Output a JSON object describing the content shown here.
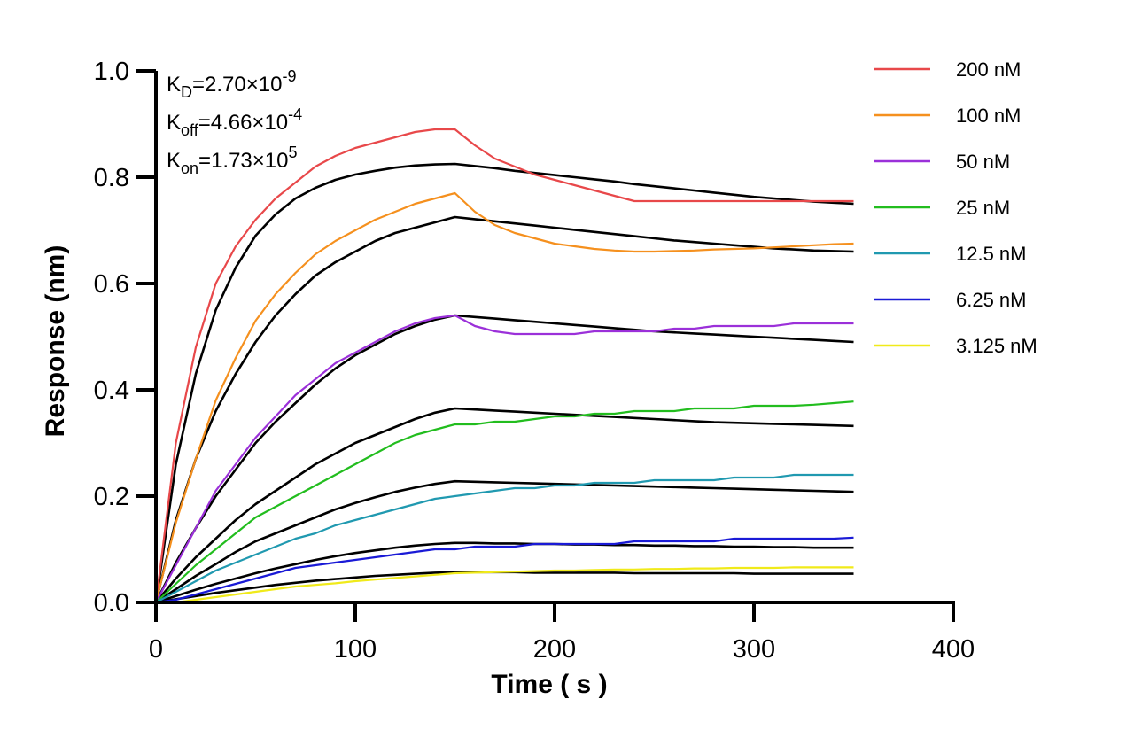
{
  "chart_data": {
    "type": "line",
    "title": "",
    "xlabel": "Time ( s )",
    "ylabel": "Response (nm)",
    "xlim": [
      0,
      400
    ],
    "ylim": [
      0,
      1.0
    ],
    "x_ticks": [
      0,
      100,
      200,
      300,
      400
    ],
    "y_ticks": [
      0.0,
      0.2,
      0.4,
      0.6,
      0.8,
      1.0
    ],
    "x_tick_labels": [
      "0",
      "100",
      "200",
      "300",
      "400"
    ],
    "y_tick_labels": [
      "0.0",
      "0.2",
      "0.4",
      "0.6",
      "0.8",
      "1.0"
    ],
    "grid": false,
    "legend_position": "top-right",
    "annotations": [
      {
        "base": "K",
        "sub": "D",
        "eq": "=2.70×10",
        "sup": "-9"
      },
      {
        "base": "K",
        "sub": "off",
        "eq": "=4.66×10",
        "sup": "-4"
      },
      {
        "base": "K",
        "sub": "on",
        "eq": "=1.73×10",
        "sup": "5"
      }
    ],
    "x": [
      0,
      10,
      20,
      30,
      40,
      50,
      60,
      70,
      80,
      90,
      100,
      110,
      120,
      130,
      140,
      150,
      160,
      170,
      180,
      190,
      200,
      210,
      220,
      230,
      240,
      250,
      260,
      270,
      280,
      290,
      300,
      310,
      320,
      330,
      340,
      350
    ],
    "series": [
      {
        "name": "200 nM",
        "color": "#e8484a",
        "values": [
          0.0,
          0.3,
          0.48,
          0.6,
          0.67,
          0.72,
          0.76,
          0.79,
          0.82,
          0.84,
          0.855,
          0.865,
          0.875,
          0.885,
          0.89,
          0.89,
          0.86,
          0.835,
          0.82,
          0.805,
          0.795,
          0.785,
          0.775,
          0.765,
          0.755,
          0.755,
          0.755,
          0.755,
          0.755,
          0.755,
          0.755,
          0.755,
          0.755,
          0.755,
          0.755,
          0.755
        ]
      },
      {
        "name": "100 nM",
        "color": "#f5901e",
        "values": [
          0.0,
          0.15,
          0.27,
          0.38,
          0.46,
          0.53,
          0.58,
          0.62,
          0.655,
          0.68,
          0.7,
          0.72,
          0.735,
          0.75,
          0.76,
          0.77,
          0.735,
          0.71,
          0.695,
          0.685,
          0.675,
          0.67,
          0.665,
          0.662,
          0.66,
          0.66,
          0.661,
          0.662,
          0.664,
          0.665,
          0.666,
          0.668,
          0.67,
          0.672,
          0.674,
          0.675
        ]
      },
      {
        "name": "50 nM",
        "color": "#9b30d9",
        "values": [
          0.0,
          0.07,
          0.14,
          0.21,
          0.26,
          0.31,
          0.35,
          0.39,
          0.42,
          0.45,
          0.47,
          0.49,
          0.51,
          0.525,
          0.535,
          0.54,
          0.52,
          0.51,
          0.505,
          0.505,
          0.505,
          0.505,
          0.51,
          0.51,
          0.51,
          0.51,
          0.515,
          0.515,
          0.52,
          0.52,
          0.52,
          0.52,
          0.525,
          0.525,
          0.525,
          0.525
        ]
      },
      {
        "name": "25 nM",
        "color": "#22bd1e",
        "values": [
          0.0,
          0.035,
          0.07,
          0.1,
          0.13,
          0.16,
          0.18,
          0.2,
          0.22,
          0.24,
          0.26,
          0.28,
          0.3,
          0.315,
          0.325,
          0.335,
          0.335,
          0.34,
          0.34,
          0.345,
          0.35,
          0.35,
          0.355,
          0.355,
          0.36,
          0.36,
          0.36,
          0.365,
          0.365,
          0.365,
          0.37,
          0.37,
          0.37,
          0.372,
          0.375,
          0.378
        ]
      },
      {
        "name": "12.5 nM",
        "color": "#2099b0",
        "values": [
          0.0,
          0.02,
          0.04,
          0.06,
          0.075,
          0.09,
          0.105,
          0.12,
          0.13,
          0.145,
          0.155,
          0.165,
          0.175,
          0.185,
          0.195,
          0.2,
          0.205,
          0.21,
          0.215,
          0.215,
          0.22,
          0.22,
          0.225,
          0.225,
          0.225,
          0.23,
          0.23,
          0.23,
          0.23,
          0.235,
          0.235,
          0.235,
          0.24,
          0.24,
          0.24,
          0.24
        ]
      },
      {
        "name": "6.25 nM",
        "color": "#1a1ad6",
        "values": [
          0.0,
          0.005,
          0.015,
          0.025,
          0.035,
          0.045,
          0.055,
          0.065,
          0.07,
          0.075,
          0.08,
          0.085,
          0.09,
          0.095,
          0.1,
          0.1,
          0.105,
          0.105,
          0.105,
          0.11,
          0.11,
          0.11,
          0.11,
          0.11,
          0.115,
          0.115,
          0.115,
          0.115,
          0.115,
          0.12,
          0.12,
          0.12,
          0.12,
          0.12,
          0.12,
          0.122
        ]
      },
      {
        "name": "3.125 nM",
        "color": "#f0ea1a",
        "values": [
          0.0,
          0.0,
          0.005,
          0.01,
          0.015,
          0.02,
          0.025,
          0.03,
          0.033,
          0.036,
          0.04,
          0.043,
          0.046,
          0.049,
          0.052,
          0.055,
          0.056,
          0.057,
          0.058,
          0.059,
          0.06,
          0.06,
          0.061,
          0.062,
          0.062,
          0.063,
          0.063,
          0.064,
          0.064,
          0.065,
          0.065,
          0.065,
          0.066,
          0.066,
          0.066,
          0.066
        ]
      }
    ],
    "fit_series": [
      {
        "color": "#000000",
        "values": [
          0.0,
          0.26,
          0.43,
          0.55,
          0.63,
          0.69,
          0.73,
          0.76,
          0.78,
          0.795,
          0.805,
          0.812,
          0.818,
          0.822,
          0.824,
          0.825,
          0.821,
          0.817,
          0.812,
          0.808,
          0.804,
          0.8,
          0.796,
          0.792,
          0.787,
          0.783,
          0.779,
          0.775,
          0.771,
          0.767,
          0.763,
          0.76,
          0.757,
          0.754,
          0.752,
          0.75
        ]
      },
      {
        "color": "#000000",
        "values": [
          0.0,
          0.155,
          0.27,
          0.36,
          0.43,
          0.49,
          0.54,
          0.58,
          0.615,
          0.64,
          0.66,
          0.68,
          0.695,
          0.705,
          0.715,
          0.725,
          0.721,
          0.717,
          0.713,
          0.709,
          0.705,
          0.701,
          0.697,
          0.693,
          0.689,
          0.685,
          0.681,
          0.678,
          0.675,
          0.672,
          0.669,
          0.666,
          0.664,
          0.662,
          0.661,
          0.66
        ]
      },
      {
        "color": "#000000",
        "values": [
          0.0,
          0.075,
          0.14,
          0.2,
          0.25,
          0.3,
          0.34,
          0.375,
          0.41,
          0.44,
          0.465,
          0.485,
          0.505,
          0.52,
          0.532,
          0.54,
          0.537,
          0.534,
          0.531,
          0.528,
          0.525,
          0.522,
          0.519,
          0.516,
          0.513,
          0.51,
          0.508,
          0.506,
          0.504,
          0.502,
          0.5,
          0.498,
          0.496,
          0.494,
          0.492,
          0.49
        ]
      },
      {
        "color": "#000000",
        "values": [
          0.0,
          0.045,
          0.085,
          0.12,
          0.155,
          0.185,
          0.21,
          0.235,
          0.26,
          0.28,
          0.3,
          0.315,
          0.33,
          0.345,
          0.357,
          0.365,
          0.363,
          0.361,
          0.359,
          0.357,
          0.355,
          0.353,
          0.351,
          0.349,
          0.347,
          0.345,
          0.343,
          0.341,
          0.339,
          0.338,
          0.337,
          0.336,
          0.335,
          0.334,
          0.333,
          0.332
        ]
      },
      {
        "color": "#000000",
        "values": [
          0.0,
          0.025,
          0.05,
          0.072,
          0.095,
          0.115,
          0.13,
          0.145,
          0.16,
          0.175,
          0.187,
          0.198,
          0.208,
          0.216,
          0.223,
          0.228,
          0.227,
          0.226,
          0.225,
          0.224,
          0.223,
          0.222,
          0.221,
          0.22,
          0.219,
          0.218,
          0.217,
          0.216,
          0.215,
          0.214,
          0.213,
          0.212,
          0.211,
          0.21,
          0.209,
          0.208
        ]
      },
      {
        "color": "#000000",
        "values": [
          0.0,
          0.012,
          0.024,
          0.035,
          0.045,
          0.055,
          0.064,
          0.072,
          0.08,
          0.087,
          0.093,
          0.098,
          0.103,
          0.107,
          0.11,
          0.112,
          0.112,
          0.111,
          0.111,
          0.11,
          0.11,
          0.109,
          0.109,
          0.108,
          0.108,
          0.107,
          0.107,
          0.106,
          0.106,
          0.105,
          0.105,
          0.104,
          0.104,
          0.103,
          0.103,
          0.103
        ]
      },
      {
        "color": "#000000",
        "values": [
          0.0,
          0.006,
          0.012,
          0.018,
          0.023,
          0.028,
          0.033,
          0.037,
          0.041,
          0.044,
          0.047,
          0.05,
          0.052,
          0.054,
          0.056,
          0.057,
          0.057,
          0.057,
          0.057,
          0.056,
          0.056,
          0.056,
          0.056,
          0.056,
          0.055,
          0.055,
          0.055,
          0.055,
          0.055,
          0.055,
          0.054,
          0.054,
          0.054,
          0.054,
          0.054,
          0.054
        ]
      }
    ]
  }
}
